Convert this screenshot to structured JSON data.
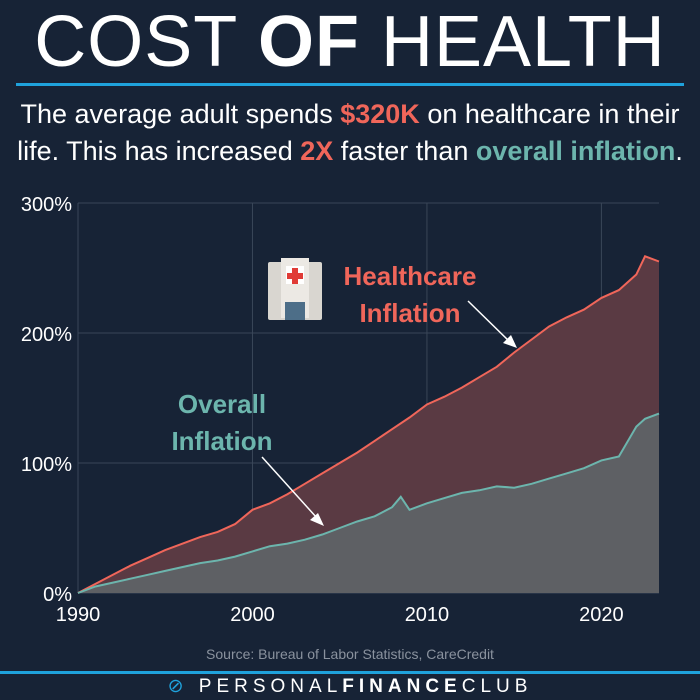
{
  "title": {
    "part1": "COST ",
    "part2": "OF",
    "part3": " HEALTH"
  },
  "subtitle": {
    "t1": "The average adult spends ",
    "t2": "$320K",
    "t3": " on healthcare in their life. This has increased ",
    "t4": "2X",
    "t5": " faster than ",
    "t6": "overall inflation",
    "t7": "."
  },
  "source": "Source: Bureau of Labor Statistics, CareCredit",
  "brand": {
    "a": "PERSONAL",
    "b": "FINANCE",
    "c": "CLUB"
  },
  "colors": {
    "healthcare": "#f0665a",
    "overall": "#6cb5ad",
    "accent": "#1fa2dc"
  },
  "chart_data": {
    "type": "area",
    "xlim": [
      1990,
      2023.3
    ],
    "ylim": [
      0,
      300
    ],
    "x_ticks": [
      "1990",
      "2000",
      "2010",
      "2020"
    ],
    "y_ticks": [
      "0%",
      "100%",
      "200%",
      "300%"
    ],
    "grid": true,
    "annotations": {
      "healthcare": [
        "Healthcare",
        "Inflation"
      ],
      "overall": [
        "Overall",
        "Inflation"
      ]
    },
    "series": [
      {
        "name": "Healthcare Inflation",
        "x": [
          1990,
          1991,
          1992,
          1993,
          1994,
          1995,
          1996,
          1997,
          1998,
          1999,
          2000,
          2001,
          2002,
          2003,
          2004,
          2005,
          2006,
          2007,
          2008,
          2009,
          2010,
          2011,
          2012,
          2013,
          2014,
          2015,
          2016,
          2017,
          2018,
          2019,
          2020,
          2021,
          2022,
          2022.5,
          2023.3
        ],
        "values": [
          0,
          7,
          14,
          21,
          27,
          33,
          38,
          43,
          47,
          53,
          64,
          69,
          76,
          84,
          92,
          100,
          108,
          117,
          126,
          135,
          145,
          151,
          158,
          166,
          174,
          185,
          195,
          205,
          212,
          218,
          227,
          233,
          245,
          259,
          255
        ]
      },
      {
        "name": "Overall Inflation",
        "x": [
          1990,
          1991,
          1992,
          1993,
          1994,
          1995,
          1996,
          1997,
          1998,
          1999,
          2000,
          2001,
          2002,
          2003,
          2004,
          2005,
          2006,
          2007,
          2008,
          2008.5,
          2009,
          2010,
          2011,
          2012,
          2013,
          2014,
          2015,
          2016,
          2017,
          2018,
          2019,
          2020,
          2021,
          2022,
          2022.5,
          2023.3
        ],
        "values": [
          0,
          5,
          8,
          11,
          14,
          17,
          20,
          23,
          25,
          28,
          32,
          36,
          38,
          41,
          45,
          50,
          55,
          59,
          66,
          74,
          64,
          69,
          73,
          77,
          79,
          82,
          81,
          84,
          88,
          92,
          96,
          102,
          105,
          128,
          134,
          138
        ]
      }
    ]
  }
}
